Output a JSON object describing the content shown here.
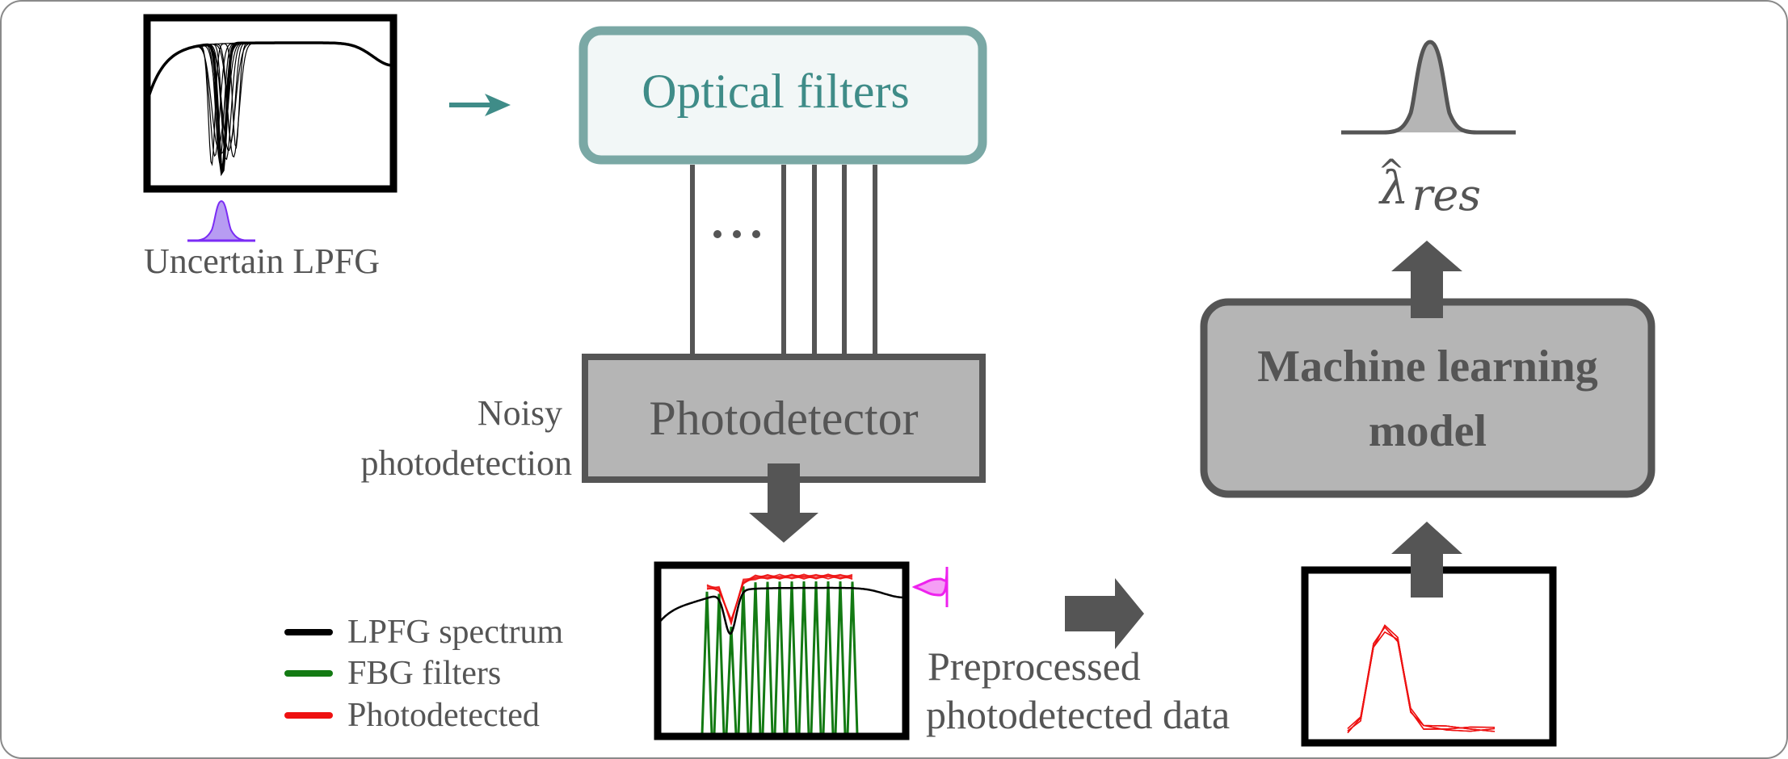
{
  "uncertain_label": "Uncertain LPFG",
  "optical_filters_label": "Optical filters",
  "ellipsis": "…",
  "photodetector_label": "Photodetector",
  "noisy_label_line1": "Noisy",
  "noisy_label_line2": "photodetection",
  "ml_label_line1": "Machine learning",
  "ml_label_line2": "model",
  "output_symbol": "λ",
  "output_hat": "^",
  "output_subscript": "res",
  "preprocessed_line1": "Preprocessed",
  "preprocessed_line2": "photodetected data",
  "legend": [
    {
      "label": "LPFG spectrum",
      "color": "#000000"
    },
    {
      "label": "FBG filters",
      "color": "#137a13"
    },
    {
      "label": "Photodetected",
      "color": "#ee1111"
    }
  ],
  "colors": {
    "teal": "#3f8c88",
    "teal_fill": "#f2f7f7",
    "gray_box": "#b5b5b5",
    "dark": "#555555",
    "purple": "#7b2cf5",
    "magenta": "#ee22ee",
    "output_fill": "#b5b5b5"
  }
}
